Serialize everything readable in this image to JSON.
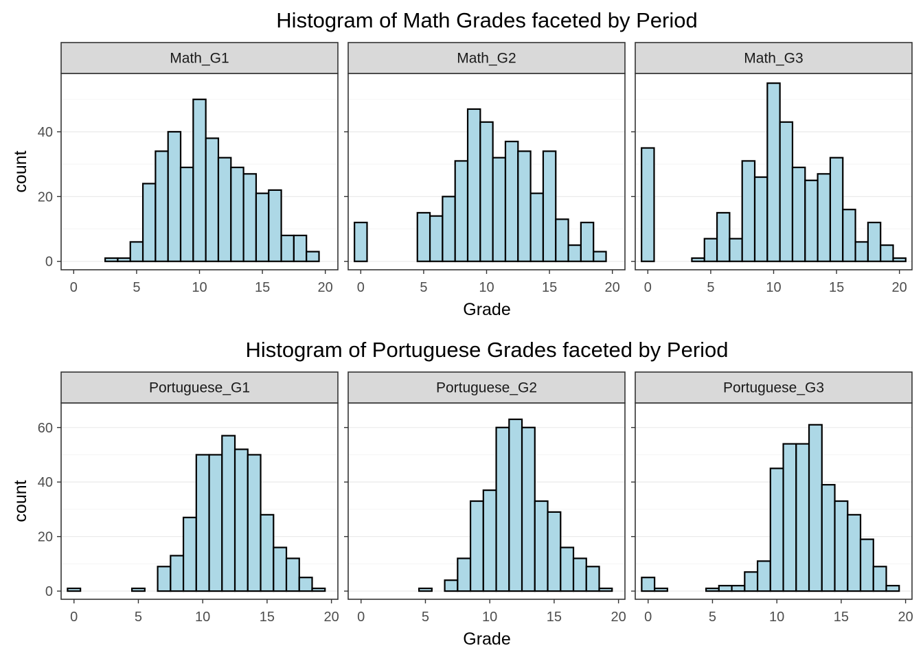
{
  "chart_data": [
    {
      "type": "bar",
      "title": "Histogram of Math Grades faceted by Period",
      "xlabel": "Grade",
      "ylabel": "count",
      "xlim": [
        -1,
        21
      ],
      "ylim": [
        -2.6,
        58
      ],
      "x_ticks": [
        "0",
        "5",
        "10",
        "15",
        "20"
      ],
      "y_ticks": [
        "0",
        "20",
        "40"
      ],
      "y_tick_values": [
        0,
        20,
        40
      ],
      "grid": true,
      "facets": [
        {
          "label": "Math_G1",
          "bins": [
            3,
            4,
            5,
            6,
            7,
            8,
            9,
            10,
            11,
            12,
            13,
            14,
            15,
            16,
            17,
            18,
            19
          ],
          "values": [
            1,
            1,
            6,
            24,
            34,
            40,
            29,
            50,
            38,
            32,
            29,
            27,
            21,
            22,
            8,
            8,
            3
          ]
        },
        {
          "label": "Math_G2",
          "bins": [
            0,
            5,
            6,
            7,
            8,
            9,
            10,
            11,
            12,
            13,
            14,
            15,
            16,
            17,
            18,
            19
          ],
          "values": [
            12,
            15,
            14,
            20,
            31,
            47,
            43,
            32,
            37,
            34,
            21,
            34,
            13,
            5,
            12,
            3
          ]
        },
        {
          "label": "Math_G3",
          "bins": [
            0,
            4,
            5,
            6,
            7,
            8,
            9,
            10,
            11,
            12,
            13,
            14,
            15,
            16,
            17,
            18,
            19,
            20
          ],
          "values": [
            35,
            1,
            7,
            15,
            7,
            31,
            26,
            55,
            43,
            29,
            25,
            27,
            32,
            16,
            6,
            12,
            5,
            1
          ]
        }
      ]
    },
    {
      "type": "bar",
      "title": "Histogram of Portuguese Grades faceted by Period",
      "xlabel": "Grade",
      "ylabel": "count",
      "xlim": [
        -1,
        20.5
      ],
      "ylim": [
        -3,
        69
      ],
      "x_ticks": [
        "0",
        "5",
        "10",
        "15",
        "20"
      ],
      "y_ticks": [
        "0",
        "20",
        "40",
        "60"
      ],
      "y_tick_values": [
        0,
        20,
        40,
        60
      ],
      "grid": true,
      "facets": [
        {
          "label": "Portuguese_G1",
          "bins": [
            0,
            5,
            7,
            8,
            9,
            10,
            11,
            12,
            13,
            14,
            15,
            16,
            17,
            18,
            19
          ],
          "values": [
            1,
            1,
            9,
            13,
            27,
            50,
            50,
            57,
            52,
            50,
            28,
            16,
            12,
            5,
            1
          ]
        },
        {
          "label": "Portuguese_G2",
          "bins": [
            5,
            7,
            8,
            9,
            10,
            11,
            12,
            13,
            14,
            15,
            16,
            17,
            18,
            19
          ],
          "values": [
            1,
            4,
            12,
            33,
            37,
            60,
            63,
            60,
            33,
            29,
            16,
            12,
            9,
            1
          ]
        },
        {
          "label": "Portuguese_G3",
          "bins": [
            0,
            1,
            5,
            6,
            7,
            8,
            9,
            10,
            11,
            12,
            13,
            14,
            15,
            16,
            17,
            18,
            19
          ],
          "values": [
            5,
            1,
            1,
            2,
            2,
            7,
            11,
            45,
            54,
            54,
            61,
            39,
            33,
            28,
            19,
            9,
            2
          ]
        }
      ]
    }
  ],
  "colors": {
    "bar_fill": "#add8e6",
    "bar_stroke": "#000000",
    "strip_fill": "#d9d9d9",
    "grid_major": "#ebebeb",
    "grid_minor": "#f5f5f5",
    "panel_border": "#333333",
    "tick_text": "#4d4d4d"
  }
}
